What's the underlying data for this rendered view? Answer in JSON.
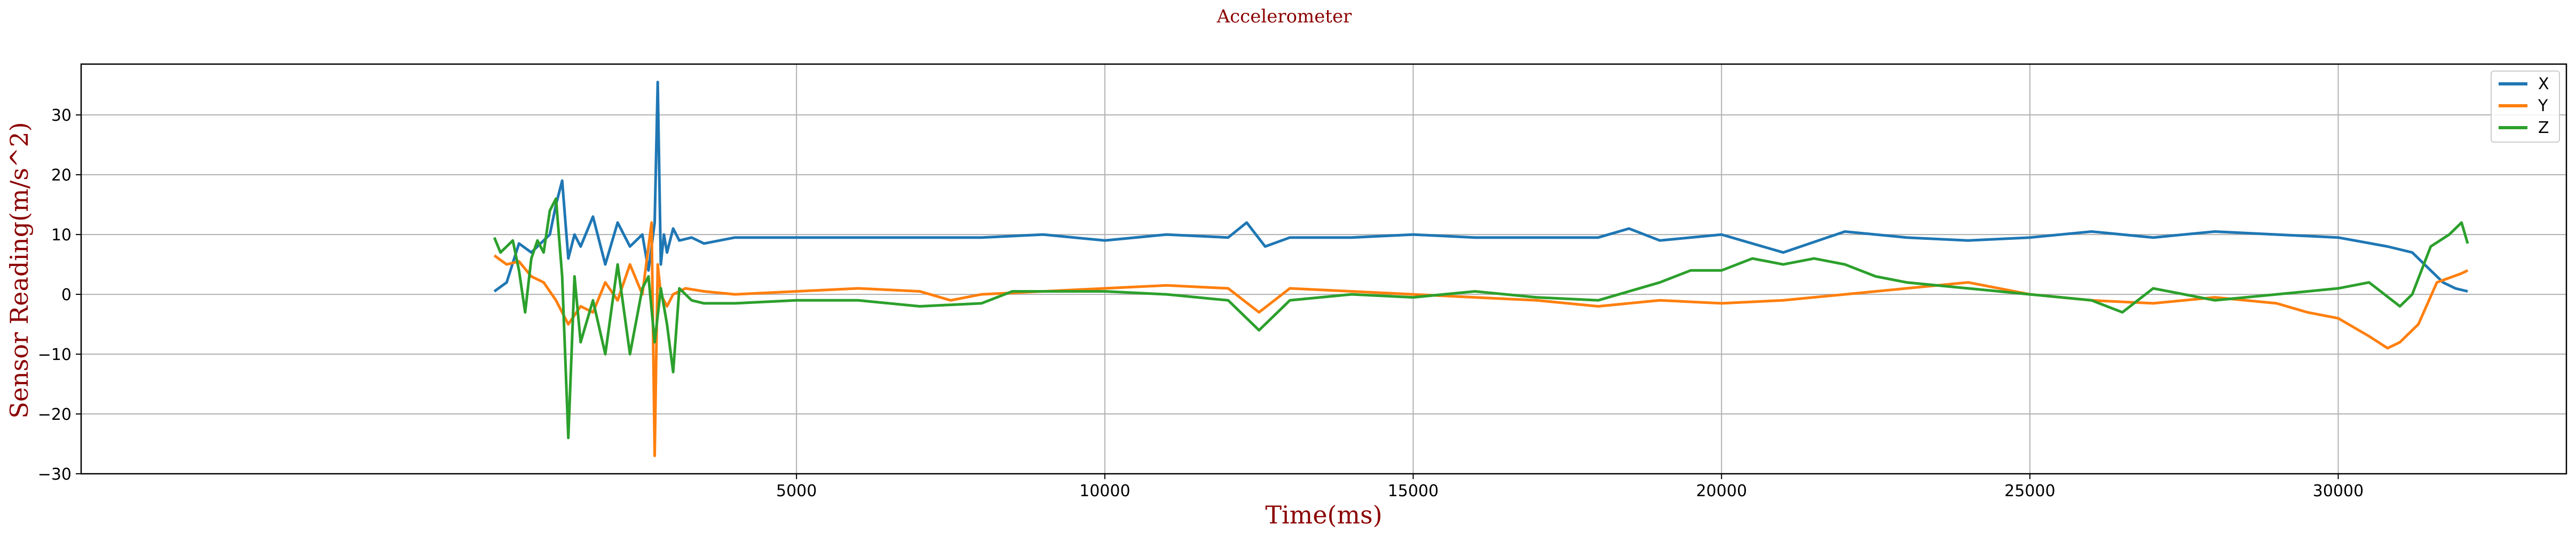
{
  "chart_data": {
    "type": "line",
    "title": "Accelerometer",
    "xlabel": "Time(ms)",
    "ylabel": "Sensor Reading(m/s^2)",
    "xlim": [
      -6600,
      33700
    ],
    "ylim": [
      -30,
      38.5
    ],
    "xticks": [
      5000,
      10000,
      15000,
      20000,
      25000,
      30000
    ],
    "yticks": [
      -30,
      -20,
      -10,
      0,
      10,
      20,
      30
    ],
    "grid": true,
    "legend_position": "top-right",
    "series": [
      {
        "name": "X",
        "color": "#1f77b4",
        "x": [
          100,
          300,
          500,
          700,
          900,
          1000,
          1100,
          1200,
          1300,
          1400,
          1500,
          1700,
          1900,
          2100,
          2300,
          2500,
          2600,
          2700,
          2750,
          2800,
          2850,
          2900,
          3000,
          3100,
          3300,
          3500,
          4000,
          5000,
          6000,
          7000,
          8000,
          9000,
          10000,
          11000,
          12000,
          12300,
          12600,
          13000,
          14000,
          15000,
          16000,
          17000,
          18000,
          18500,
          19000,
          20000,
          21000,
          22000,
          23000,
          24000,
          25000,
          26000,
          27000,
          28000,
          29000,
          30000,
          30800,
          31200,
          31500,
          31700,
          31900,
          32100
        ],
        "y": [
          0.5,
          2,
          8.5,
          7,
          9,
          10,
          15,
          19,
          6,
          10,
          8,
          13,
          5,
          12,
          8,
          10,
          4,
          12,
          35.5,
          5,
          10,
          7,
          11,
          9,
          9.5,
          8.5,
          9.5,
          9.5,
          9.5,
          9.5,
          9.5,
          10,
          9,
          10,
          9.5,
          12,
          8,
          9.5,
          9.5,
          10,
          9.5,
          9.5,
          9.5,
          11,
          9,
          10,
          7,
          10.5,
          9.5,
          9,
          9.5,
          10.5,
          9.5,
          10.5,
          10,
          9.5,
          8,
          7,
          4,
          2,
          1,
          0.5
        ]
      },
      {
        "name": "Y",
        "color": "#ff7f0e",
        "x": [
          100,
          300,
          500,
          700,
          900,
          1100,
          1300,
          1500,
          1700,
          1900,
          2100,
          2300,
          2500,
          2650,
          2700,
          2750,
          2800,
          2900,
          3000,
          3200,
          3500,
          4000,
          5000,
          6000,
          7000,
          7500,
          8000,
          9000,
          10000,
          11000,
          12000,
          12500,
          13000,
          14000,
          15000,
          16000,
          17000,
          18000,
          19000,
          20000,
          21000,
          22000,
          23000,
          24000,
          25000,
          26000,
          27000,
          28000,
          29000,
          29500,
          30000,
          30500,
          30800,
          31000,
          31300,
          31600,
          32000,
          32100
        ],
        "y": [
          6.5,
          5,
          5.5,
          3,
          2,
          -1,
          -5,
          -2,
          -3,
          2,
          -1,
          5,
          0,
          12,
          -27,
          5,
          0,
          -2,
          0,
          1,
          0.5,
          0,
          0.5,
          1,
          0.5,
          -1,
          0,
          0.5,
          1,
          1.5,
          1,
          -3,
          1,
          0.5,
          0,
          -0.5,
          -1,
          -2,
          -1,
          -1.5,
          -1,
          0,
          1,
          2,
          0,
          -1,
          -1.5,
          -0.5,
          -1.5,
          -3,
          -4,
          -7,
          -9,
          -8,
          -5,
          2,
          3.5,
          4
        ]
      },
      {
        "name": "Z",
        "color": "#2ca02c",
        "x": [
          100,
          200,
          300,
          400,
          500,
          600,
          700,
          800,
          900,
          1000,
          1100,
          1200,
          1300,
          1400,
          1500,
          1700,
          1900,
          2100,
          2300,
          2500,
          2600,
          2700,
          2800,
          2900,
          3000,
          3100,
          3300,
          3500,
          4000,
          5000,
          6000,
          7000,
          8000,
          8500,
          9000,
          10000,
          11000,
          12000,
          12500,
          13000,
          14000,
          15000,
          16000,
          17000,
          18000,
          19000,
          19500,
          20000,
          20500,
          21000,
          21500,
          22000,
          22500,
          23000,
          24000,
          25000,
          26000,
          26500,
          27000,
          28000,
          29000,
          30000,
          30500,
          31000,
          31200,
          31500,
          31800,
          32000,
          32100
        ],
        "y": [
          9.5,
          7,
          8,
          9,
          4,
          -3,
          6,
          9,
          7,
          14,
          16,
          3,
          -24,
          3,
          -8,
          -1,
          -10,
          5,
          -10,
          1,
          3,
          -8,
          1,
          -5,
          -13,
          1,
          -1,
          -1.5,
          -1.5,
          -1,
          -1,
          -2,
          -1.5,
          0.5,
          0.5,
          0.5,
          0,
          -1,
          -6,
          -1,
          0,
          -0.5,
          0.5,
          -0.5,
          -1,
          2,
          4,
          4,
          6,
          5,
          6,
          5,
          3,
          2,
          1,
          0,
          -1,
          -3,
          1,
          -1,
          0,
          1,
          2,
          -2,
          0,
          8,
          10,
          12,
          8.5
        ]
      }
    ]
  }
}
